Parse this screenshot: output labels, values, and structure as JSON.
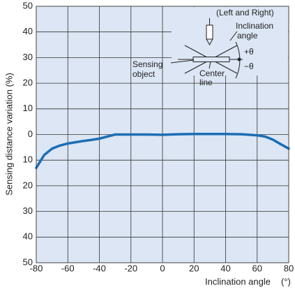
{
  "chart_data": {
    "type": "line",
    "y_label": "Sensing distance variation (%)",
    "x_label": "Inclination angle",
    "x_unit": "(°)",
    "annotations": [
      "(Left and Right)",
      "Inclination",
      "angle",
      "+θ",
      "−θ",
      "Sensing",
      "object",
      "Center",
      "line"
    ],
    "x": [
      -80,
      -75,
      -70,
      -65,
      -60,
      -55,
      -50,
      -45,
      -40,
      -35,
      -30,
      -20,
      -10,
      0,
      10,
      20,
      30,
      40,
      50,
      60,
      65,
      70,
      75,
      80
    ],
    "series": [
      {
        "name": "Sensing distance variation",
        "color": "#1b6db5",
        "values": [
          -13,
          -8,
          -5.5,
          -4.3,
          -3.5,
          -3,
          -2.5,
          -2.1,
          -1.6,
          -0.8,
          0,
          0,
          0,
          -0.1,
          0.1,
          0.2,
          0.2,
          0.2,
          0.1,
          -0.3,
          -0.8,
          -2,
          -3.8,
          -5.5
        ]
      }
    ],
    "xlim": [
      -80,
      80
    ],
    "xticks": [
      -80,
      -60,
      -40,
      -20,
      0,
      20,
      40,
      60,
      80
    ],
    "ylim": [
      -50,
      50
    ],
    "yticks": [
      {
        "value": -50,
        "label": "50"
      },
      {
        "value": -40,
        "label": "40"
      },
      {
        "value": -30,
        "label": "30"
      },
      {
        "value": -20,
        "label": "20"
      },
      {
        "value": -10,
        "label": "10"
      },
      0,
      10,
      20,
      30,
      40,
      50
    ],
    "grid": true
  }
}
